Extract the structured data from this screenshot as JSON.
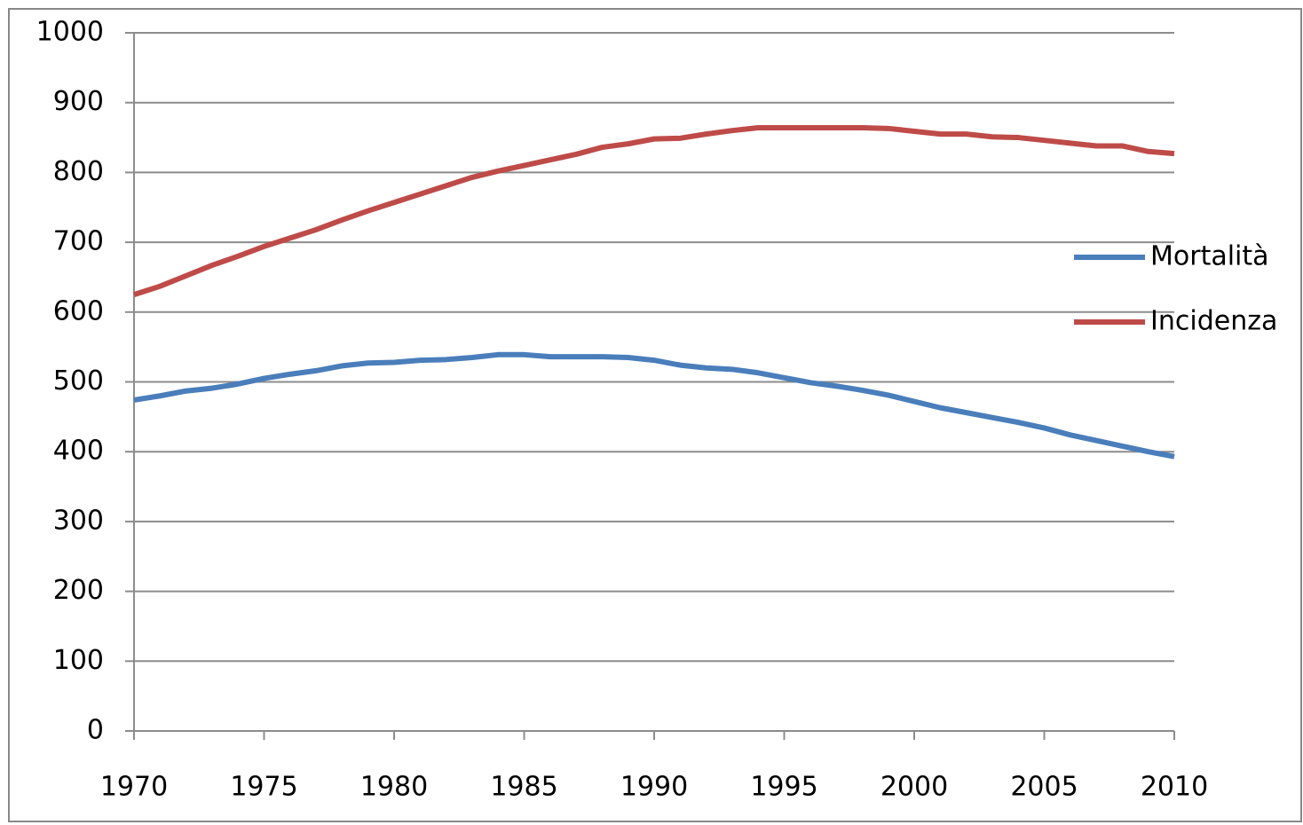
{
  "chart_data": {
    "type": "line",
    "x": [
      1970,
      1971,
      1972,
      1973,
      1974,
      1975,
      1976,
      1977,
      1978,
      1979,
      1980,
      1981,
      1982,
      1983,
      1984,
      1985,
      1986,
      1987,
      1988,
      1989,
      1990,
      1991,
      1992,
      1993,
      1994,
      1995,
      1996,
      1997,
      1998,
      1999,
      2000,
      2001,
      2002,
      2003,
      2004,
      2005,
      2006,
      2007,
      2008,
      2009,
      2010
    ],
    "series": [
      {
        "name": "Mortalità",
        "color": "#4a7ebb",
        "values": [
          474,
          480,
          487,
          491,
          497,
          505,
          511,
          516,
          523,
          527,
          528,
          531,
          532,
          535,
          539,
          539,
          536,
          536,
          536,
          535,
          531,
          524,
          520,
          518,
          513,
          506,
          499,
          494,
          488,
          481,
          472,
          463,
          456,
          449,
          442,
          434,
          424,
          416,
          408,
          400,
          393
        ]
      },
      {
        "name": "Incidenza",
        "color": "#be4b48",
        "values": [
          625,
          637,
          652,
          667,
          680,
          694,
          706,
          718,
          732,
          745,
          757,
          769,
          781,
          793,
          802,
          810,
          818,
          826,
          836,
          841,
          848,
          849,
          855,
          860,
          864,
          864,
          864,
          864,
          864,
          863,
          859,
          855,
          855,
          851,
          850,
          846,
          842,
          838,
          838,
          830,
          827
        ]
      }
    ],
    "xlim": [
      1970,
      2010
    ],
    "xticks": [
      1970,
      1975,
      1980,
      1985,
      1990,
      1995,
      2000,
      2005,
      2010
    ],
    "ylim": [
      0,
      1000
    ],
    "yticks": [
      0,
      100,
      200,
      300,
      400,
      500,
      600,
      700,
      800,
      900,
      1000
    ],
    "grid": true,
    "legend": "right"
  }
}
